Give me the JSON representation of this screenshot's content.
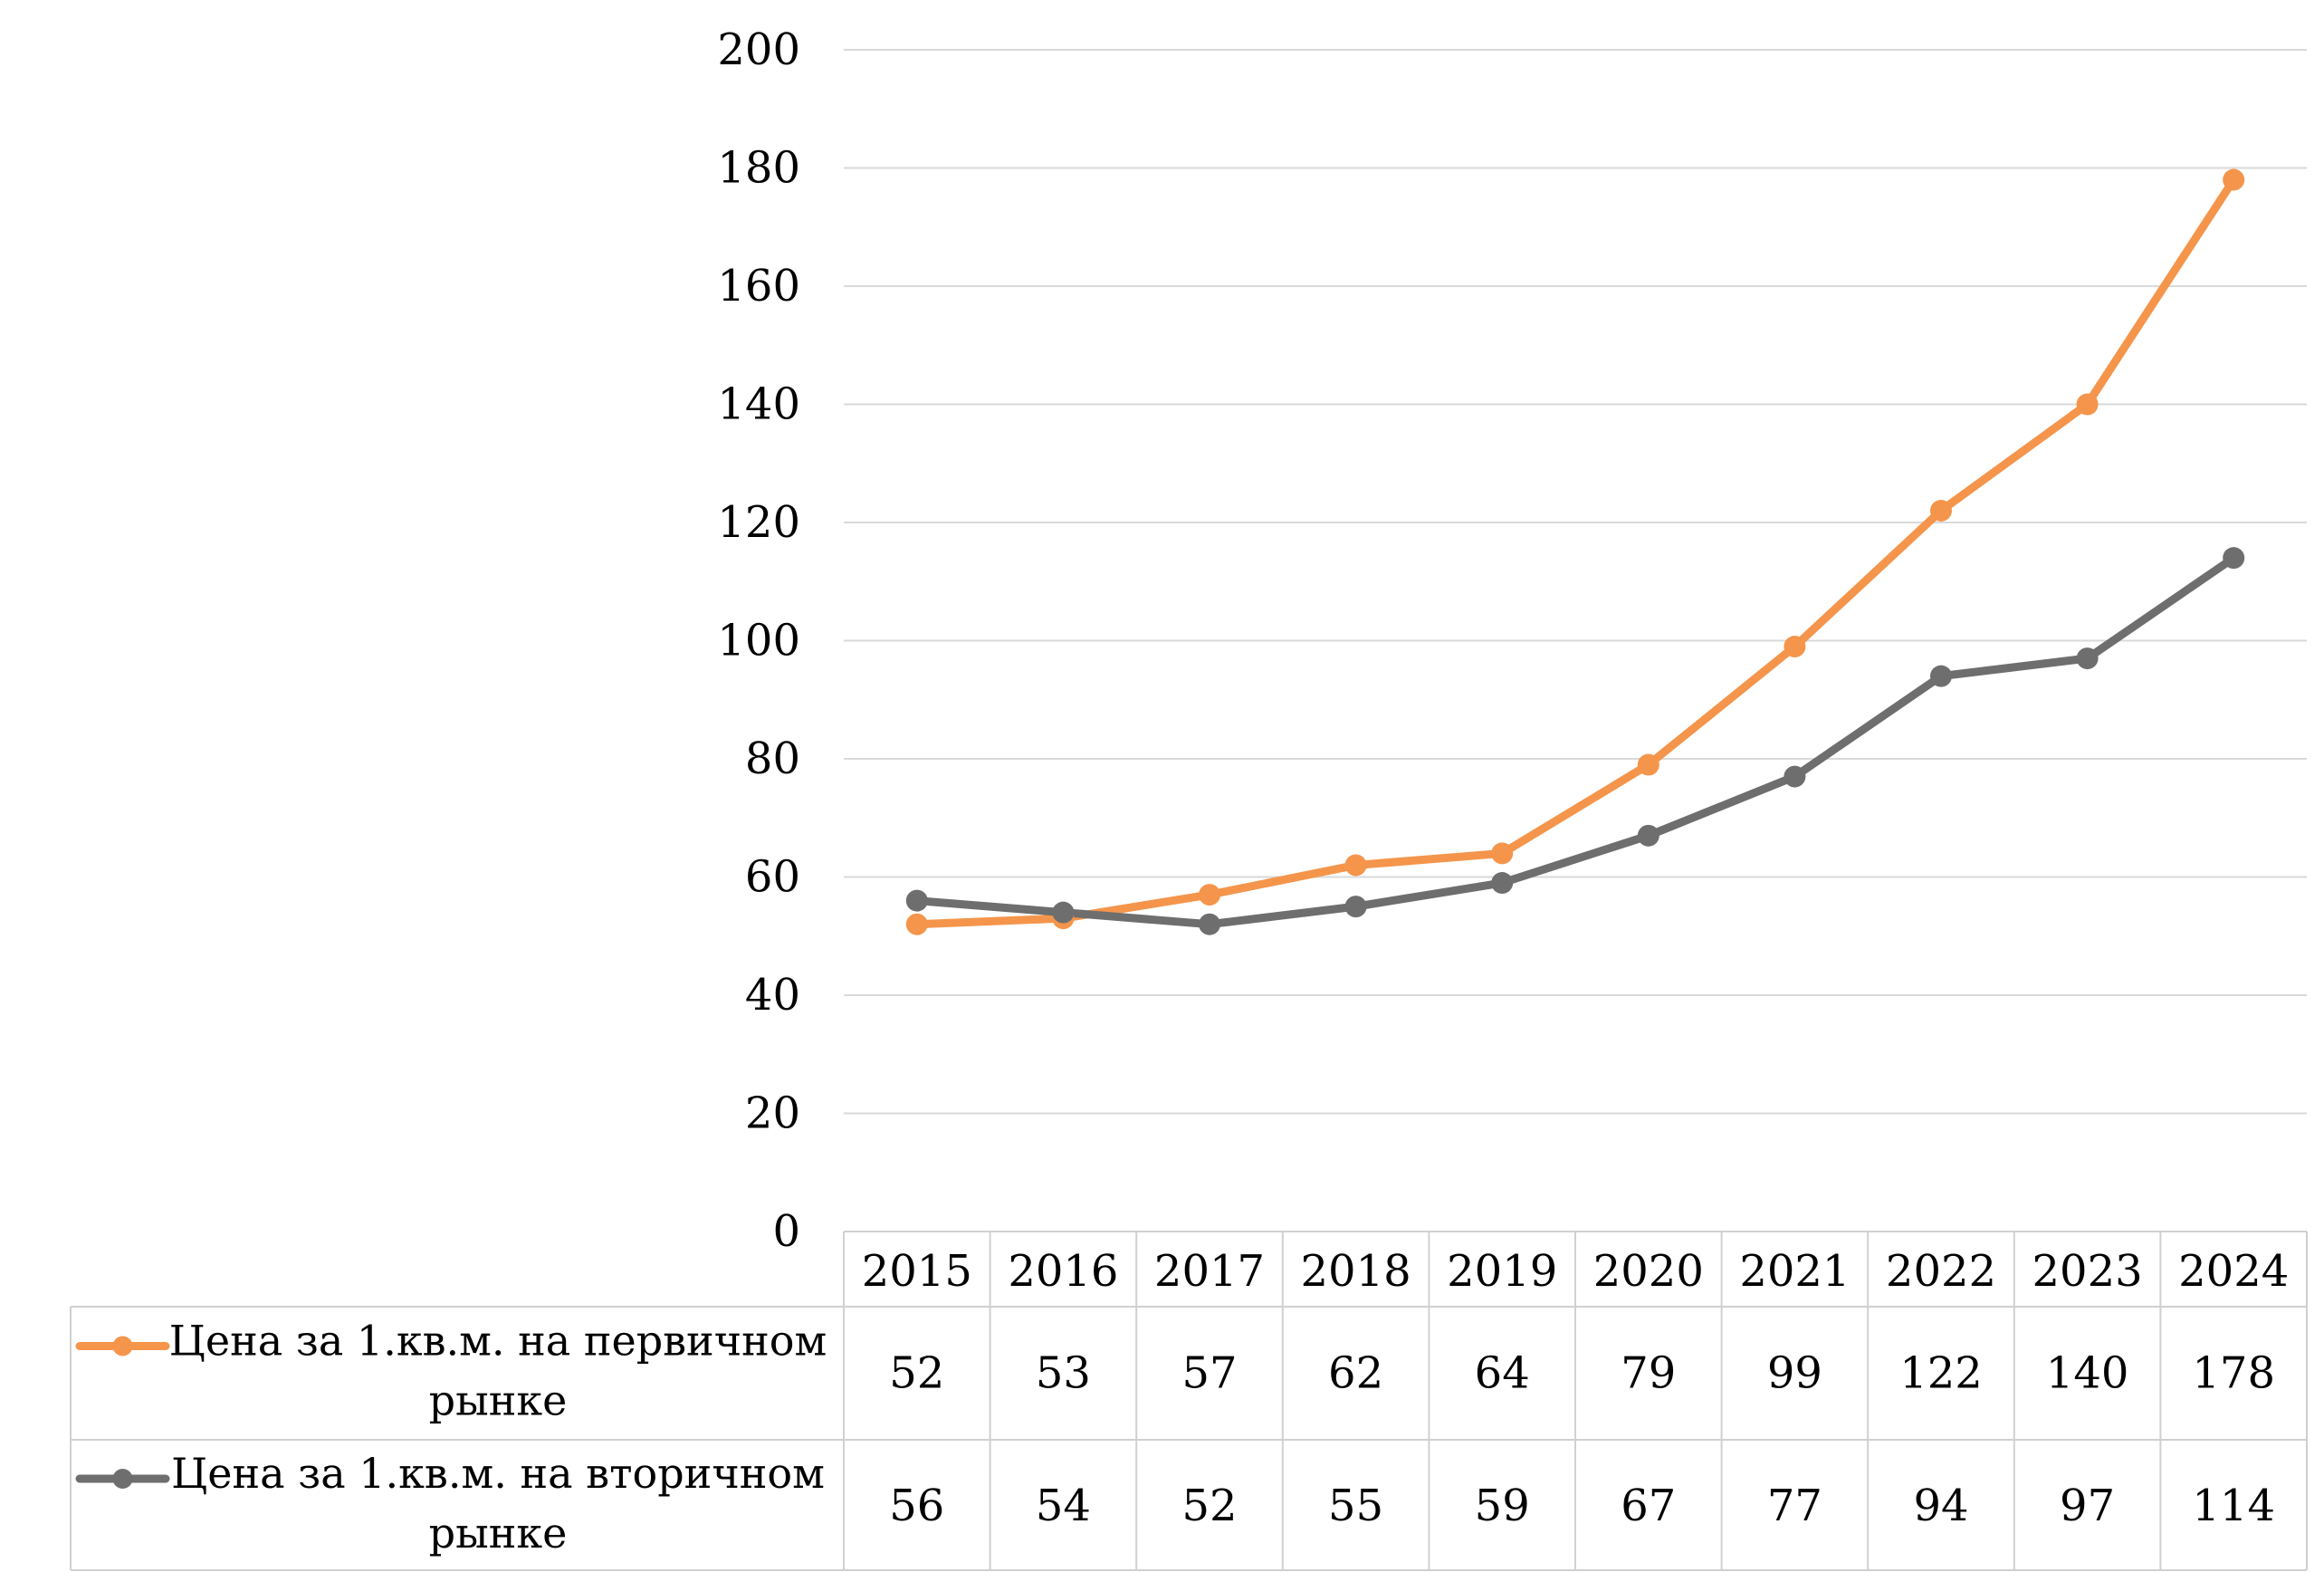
{
  "chart_data": {
    "type": "line",
    "title": "",
    "xlabel": "",
    "ylabel": "",
    "ylim": [
      0,
      200
    ],
    "yticks": [
      0,
      20,
      40,
      60,
      80,
      100,
      120,
      140,
      160,
      180,
      200
    ],
    "grid": true,
    "legend_placement": "data-table-bottom",
    "categories": [
      "2015",
      "2016",
      "2017",
      "2018",
      "2019",
      "2020",
      "2021",
      "2022",
      "2023",
      "2024"
    ],
    "series": [
      {
        "name": "Цена за 1.кв.м. на первичном рынке",
        "name_lines": [
          "Цена за 1.кв.м. на первичном",
          "рынке"
        ],
        "color": "#F4954B",
        "values": [
          52,
          53,
          57,
          62,
          64,
          79,
          99,
          122,
          140,
          178
        ]
      },
      {
        "name": "Цена за 1.кв.м. на вторичном рынке",
        "name_lines": [
          "Цена за 1.кв.м. на вторичном",
          "рынке"
        ],
        "color": "#6E6E6E",
        "values": [
          56,
          54,
          52,
          55,
          59,
          67,
          77,
          94,
          97,
          114
        ]
      }
    ],
    "colors": {
      "grid": "#D9D9D9",
      "table_border": "#D0D0D0",
      "text": "#000000"
    }
  }
}
